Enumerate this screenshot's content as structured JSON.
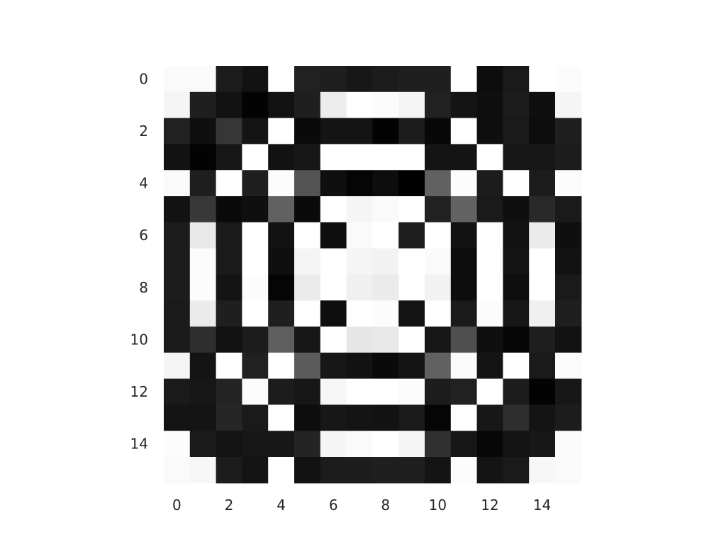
{
  "chart_data": {
    "type": "heatmap",
    "title": "",
    "xlabel": "",
    "ylabel": "",
    "colormap": "gray",
    "value_range": [
      0,
      1
    ],
    "grid": false,
    "shape": [
      16,
      16
    ],
    "x_ticks": [
      0,
      2,
      4,
      6,
      8,
      10,
      12,
      14
    ],
    "y_ticks": [
      0,
      2,
      4,
      6,
      8,
      10,
      12,
      14
    ],
    "values": [
      [
        0.98,
        0.98,
        0.11,
        0.07,
        1.0,
        0.13,
        0.12,
        0.09,
        0.11,
        0.12,
        0.12,
        1.0,
        0.05,
        0.1,
        1.0,
        0.99
      ],
      [
        0.96,
        0.12,
        0.07,
        0.01,
        0.07,
        0.12,
        0.93,
        1.0,
        0.99,
        0.96,
        0.13,
        0.08,
        0.06,
        0.11,
        0.06,
        0.96
      ],
      [
        0.13,
        0.06,
        0.21,
        0.08,
        1.0,
        0.04,
        0.08,
        0.08,
        0.01,
        0.11,
        0.03,
        1.0,
        0.06,
        0.1,
        0.05,
        0.12
      ],
      [
        0.07,
        0.01,
        0.09,
        1.0,
        0.07,
        0.09,
        1.0,
        1.0,
        1.0,
        1.0,
        0.08,
        0.08,
        1.0,
        0.09,
        0.09,
        0.11
      ],
      [
        0.98,
        0.12,
        1.0,
        0.12,
        0.99,
        0.33,
        0.06,
        0.02,
        0.05,
        0.0,
        0.38,
        0.99,
        0.11,
        1.0,
        0.11,
        0.99
      ],
      [
        0.07,
        0.22,
        0.04,
        0.06,
        0.38,
        0.04,
        1.0,
        0.96,
        0.98,
        1.0,
        0.13,
        0.39,
        0.1,
        0.06,
        0.16,
        0.1
      ],
      [
        0.11,
        0.91,
        0.1,
        1.0,
        0.07,
        1.0,
        0.06,
        0.98,
        1.0,
        0.12,
        1.0,
        0.07,
        1.0,
        0.07,
        0.92,
        0.06
      ],
      [
        0.11,
        0.99,
        0.1,
        1.0,
        0.06,
        0.96,
        1.0,
        0.96,
        0.95,
        1.0,
        0.98,
        0.05,
        1.0,
        0.08,
        1.0,
        0.07
      ],
      [
        0.11,
        0.99,
        0.08,
        0.99,
        0.02,
        0.92,
        1.0,
        0.94,
        0.92,
        1.0,
        0.95,
        0.05,
        1.0,
        0.06,
        1.0,
        0.1
      ],
      [
        0.1,
        0.92,
        0.12,
        1.0,
        0.12,
        1.0,
        0.06,
        1.0,
        0.99,
        0.08,
        1.0,
        0.1,
        0.99,
        0.09,
        0.94,
        0.12
      ],
      [
        0.1,
        0.18,
        0.07,
        0.11,
        0.37,
        0.09,
        1.0,
        0.9,
        0.91,
        1.0,
        0.09,
        0.31,
        0.06,
        0.02,
        0.12,
        0.07
      ],
      [
        0.96,
        0.08,
        1.0,
        0.13,
        1.0,
        0.36,
        0.09,
        0.07,
        0.04,
        0.08,
        0.38,
        0.98,
        0.08,
        1.0,
        0.1,
        0.99
      ],
      [
        0.1,
        0.09,
        0.14,
        0.99,
        0.11,
        0.09,
        0.97,
        1.0,
        1.0,
        0.99,
        0.11,
        0.13,
        1.0,
        0.11,
        0.01,
        0.09
      ],
      [
        0.08,
        0.08,
        0.15,
        0.1,
        1.0,
        0.05,
        0.09,
        0.08,
        0.07,
        0.1,
        0.02,
        1.0,
        0.09,
        0.18,
        0.08,
        0.11
      ],
      [
        0.99,
        0.1,
        0.08,
        0.09,
        0.09,
        0.14,
        0.96,
        0.98,
        1.0,
        0.96,
        0.19,
        0.09,
        0.03,
        0.08,
        0.09,
        0.98
      ],
      [
        0.98,
        0.97,
        0.11,
        0.08,
        1.0,
        0.07,
        0.11,
        0.11,
        0.12,
        0.12,
        0.08,
        0.99,
        0.08,
        0.1,
        0.97,
        0.98
      ]
    ]
  }
}
